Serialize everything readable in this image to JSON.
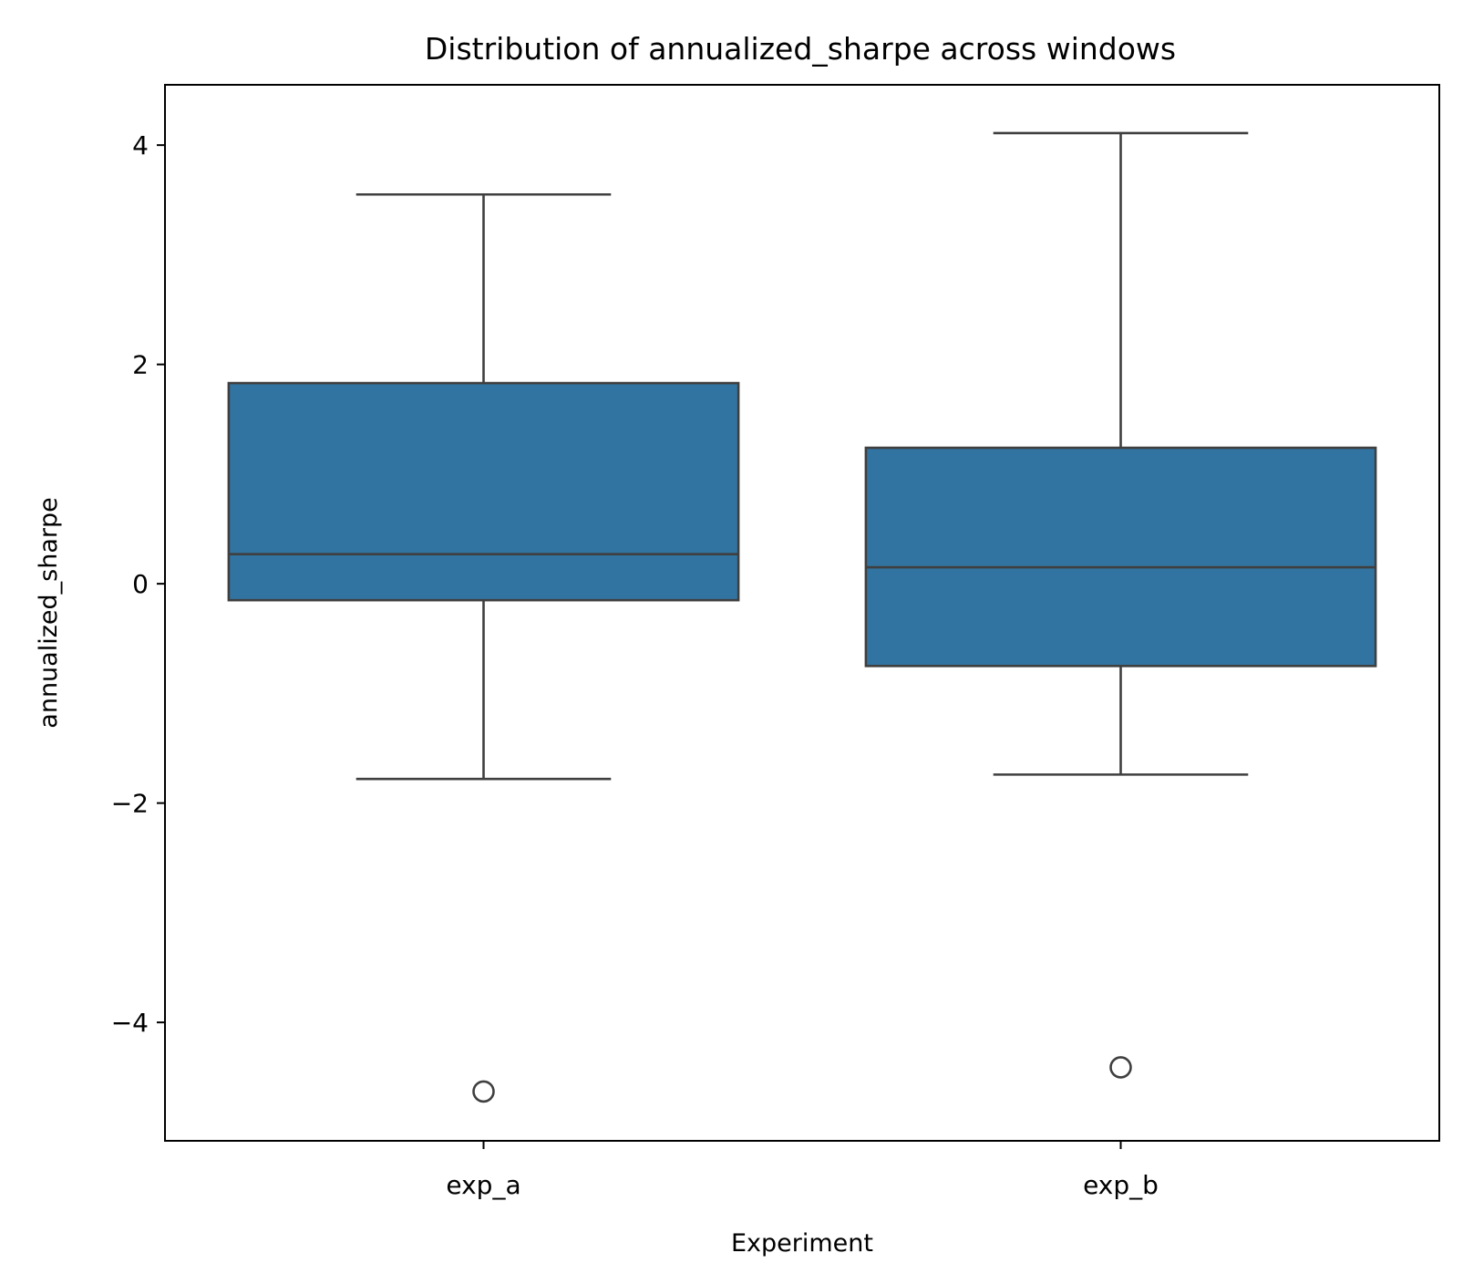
{
  "chart_data": {
    "type": "box",
    "title": "Distribution of annualized_sharpe across windows",
    "xlabel": "Experiment",
    "ylabel": "annualized_sharpe",
    "categories": [
      "exp_a",
      "exp_b"
    ],
    "ylim": [
      -5.08,
      4.55
    ],
    "yticks": [
      -4,
      -2,
      0,
      2,
      4
    ],
    "ytick_labels": [
      "−4",
      "−2",
      "0",
      "2",
      "4"
    ],
    "grid": false,
    "legend": "none",
    "box_color": "#3274a1",
    "line_color": "#3f3f3f",
    "boxes": [
      {
        "category": "exp_a",
        "whisker_low": -1.78,
        "q1": -0.15,
        "median": 0.27,
        "q3": 1.83,
        "whisker_high": 3.55,
        "outliers": [
          -4.63
        ]
      },
      {
        "category": "exp_b",
        "whisker_low": -1.74,
        "q1": -0.75,
        "median": 0.15,
        "q3": 1.24,
        "whisker_high": 4.11,
        "outliers": [
          -4.41
        ]
      }
    ]
  }
}
